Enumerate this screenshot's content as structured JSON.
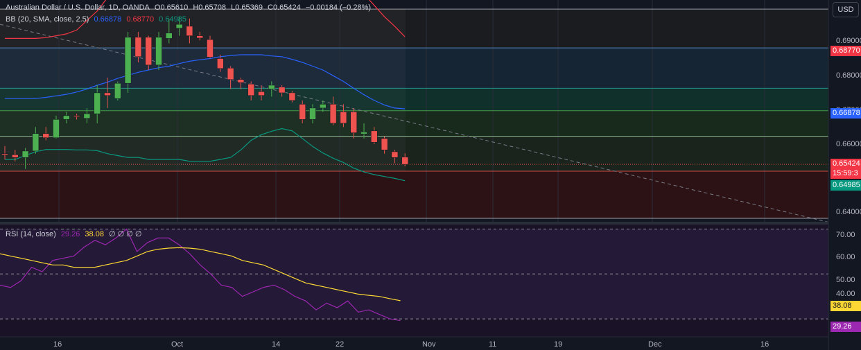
{
  "header": {
    "symbol": "Australian Dollar / U.S. Dollar, 1D, OANDA",
    "open": "O0.65610",
    "high": "H0.65708",
    "low": "L0.65369",
    "close": "C0.65424",
    "change": "−0.00184 (−0.28%)"
  },
  "bb_legend": {
    "label": "BB (20, SMA, close, 2.5)",
    "basis": "0.66878",
    "upper": "0.68770",
    "lower": "0.64985"
  },
  "rsi_legend": {
    "label": "RSI (14, close)",
    "rsi": "29.26",
    "ma": "38.08",
    "extras": "∅ ∅ ∅ ∅"
  },
  "currency_button": "USD",
  "price_axis": {
    "ticks": [
      "0.69000",
      "0.68000",
      "0.67000",
      "0.66000",
      "0.64000"
    ],
    "tags": {
      "upper": "0.68770",
      "basis": "0.66878",
      "last": "0.65424",
      "countdown": "15:59:3",
      "lower": "0.64985"
    }
  },
  "rsi_axis": {
    "ticks": [
      "70.00",
      "60.00",
      "50.00",
      "40.00"
    ],
    "tags": {
      "ma": "38.08",
      "rsi": "29.26"
    }
  },
  "time_axis": [
    "16",
    "Oct",
    "14",
    "22",
    "Nov",
    "11",
    "19",
    "Dec",
    "16"
  ],
  "colors": {
    "bg": "#131722",
    "up": "#26a69a",
    "up_body": "#4caf50",
    "down": "#ef5350",
    "bb_upper": "#f23645",
    "bb_basis": "#2962ff",
    "bb_lower": "#089981",
    "rsi": "#9c27b0",
    "rsi_ma": "#fdd835"
  },
  "chart_data": {
    "type": "candlestick",
    "series_candles": [
      {
        "o": 0.657,
        "h": 0.659,
        "l": 0.6555,
        "c": 0.6567
      },
      {
        "o": 0.6567,
        "h": 0.658,
        "l": 0.655,
        "c": 0.656
      },
      {
        "o": 0.656,
        "h": 0.6585,
        "l": 0.653,
        "c": 0.6577
      },
      {
        "o": 0.6577,
        "h": 0.664,
        "l": 0.657,
        "c": 0.6623
      },
      {
        "o": 0.6623,
        "h": 0.664,
        "l": 0.6605,
        "c": 0.6612
      },
      {
        "o": 0.6612,
        "h": 0.667,
        "l": 0.661,
        "c": 0.666
      },
      {
        "o": 0.666,
        "h": 0.668,
        "l": 0.665,
        "c": 0.667
      },
      {
        "o": 0.667,
        "h": 0.6675,
        "l": 0.666,
        "c": 0.6668
      },
      {
        "o": 0.6663,
        "h": 0.669,
        "l": 0.665,
        "c": 0.6675
      },
      {
        "o": 0.6675,
        "h": 0.675,
        "l": 0.665,
        "c": 0.673
      },
      {
        "o": 0.673,
        "h": 0.677,
        "l": 0.669,
        "c": 0.6723
      },
      {
        "o": 0.6715,
        "h": 0.676,
        "l": 0.671,
        "c": 0.6755
      },
      {
        "o": 0.6755,
        "h": 0.689,
        "l": 0.673,
        "c": 0.6876
      },
      {
        "o": 0.6876,
        "h": 0.689,
        "l": 0.681,
        "c": 0.6825
      },
      {
        "o": 0.6876,
        "h": 0.688,
        "l": 0.679,
        "c": 0.6803
      },
      {
        "o": 0.6803,
        "h": 0.689,
        "l": 0.679,
        "c": 0.6876
      },
      {
        "o": 0.6873,
        "h": 0.6925,
        "l": 0.686,
        "c": 0.6887
      },
      {
        "o": 0.69,
        "h": 0.693,
        "l": 0.688,
        "c": 0.691
      },
      {
        "o": 0.6905,
        "h": 0.6925,
        "l": 0.686,
        "c": 0.688
      },
      {
        "o": 0.688,
        "h": 0.689,
        "l": 0.6868,
        "c": 0.6874
      },
      {
        "o": 0.687,
        "h": 0.688,
        "l": 0.682,
        "c": 0.6824
      },
      {
        "o": 0.682,
        "h": 0.683,
        "l": 0.6785,
        "c": 0.6794
      },
      {
        "o": 0.6795,
        "h": 0.68,
        "l": 0.674,
        "c": 0.6765
      },
      {
        "o": 0.6765,
        "h": 0.677,
        "l": 0.674,
        "c": 0.6757
      },
      {
        "o": 0.6753,
        "h": 0.676,
        "l": 0.671,
        "c": 0.6723
      },
      {
        "o": 0.6733,
        "h": 0.675,
        "l": 0.671,
        "c": 0.6723
      },
      {
        "o": 0.674,
        "h": 0.676,
        "l": 0.672,
        "c": 0.675
      },
      {
        "o": 0.6745,
        "h": 0.675,
        "l": 0.672,
        "c": 0.673
      },
      {
        "o": 0.673,
        "h": 0.6735,
        "l": 0.6705,
        "c": 0.671
      },
      {
        "o": 0.67,
        "h": 0.671,
        "l": 0.665,
        "c": 0.666
      },
      {
        "o": 0.666,
        "h": 0.67,
        "l": 0.665,
        "c": 0.669
      },
      {
        "o": 0.669,
        "h": 0.671,
        "l": 0.668,
        "c": 0.67
      },
      {
        "o": 0.67,
        "h": 0.672,
        "l": 0.6645,
        "c": 0.665
      },
      {
        "o": 0.668,
        "h": 0.67,
        "l": 0.664,
        "c": 0.665
      },
      {
        "o": 0.668,
        "h": 0.669,
        "l": 0.661,
        "c": 0.6625
      },
      {
        "o": 0.6622,
        "h": 0.665,
        "l": 0.661,
        "c": 0.6627
      },
      {
        "o": 0.663,
        "h": 0.664,
        "l": 0.6595,
        "c": 0.66
      },
      {
        "o": 0.661,
        "h": 0.6615,
        "l": 0.657,
        "c": 0.658
      },
      {
        "o": 0.6575,
        "h": 0.658,
        "l": 0.6545,
        "c": 0.656
      },
      {
        "o": 0.6561,
        "h": 0.6571,
        "l": 0.6537,
        "c": 0.6542
      }
    ],
    "bb_upper": [
      0.6873,
      0.6873,
      0.6873,
      0.6873,
      0.6875,
      0.688,
      0.6885,
      0.6895,
      0.692,
      0.6945,
      0.698,
      0.701,
      0.703,
      0.7045,
      0.7055,
      0.7065,
      0.708,
      0.7095,
      0.7105,
      0.711,
      0.7105,
      0.7105,
      0.7095,
      0.7095,
      0.709,
      0.709,
      0.708,
      0.7075,
      0.707,
      0.7065,
      0.706,
      0.7055,
      0.7045,
      0.7035,
      0.7015,
      0.699,
      0.696,
      0.693,
      0.6905,
      0.6877
    ],
    "bb_basis": [
      0.6715,
      0.6715,
      0.6715,
      0.6715,
      0.6718,
      0.6722,
      0.6726,
      0.6732,
      0.674,
      0.675,
      0.6758,
      0.6768,
      0.6776,
      0.6784,
      0.679,
      0.6796,
      0.68,
      0.6807,
      0.6813,
      0.6817,
      0.682,
      0.6825,
      0.6828,
      0.683,
      0.683,
      0.683,
      0.6827,
      0.6825,
      0.6818,
      0.681,
      0.68,
      0.679,
      0.6775,
      0.676,
      0.6742,
      0.6725,
      0.671,
      0.6698,
      0.669,
      0.6688
    ],
    "bb_lower": [
      0.6555,
      0.6555,
      0.6565,
      0.6575,
      0.6581,
      0.6581,
      0.6581,
      0.658,
      0.658,
      0.6578,
      0.657,
      0.6565,
      0.656,
      0.656,
      0.6555,
      0.6555,
      0.6555,
      0.6555,
      0.655,
      0.655,
      0.655,
      0.6555,
      0.656,
      0.658,
      0.6605,
      0.662,
      0.6629,
      0.6636,
      0.663,
      0.661,
      0.6589,
      0.6572,
      0.6558,
      0.6547,
      0.6532,
      0.6522,
      0.6515,
      0.651,
      0.6505,
      0.6499
    ],
    "rsi": [
      45,
      44,
      47,
      53,
      51,
      56,
      57,
      58,
      62,
      65,
      63,
      66,
      70,
      60,
      64,
      66,
      66,
      63,
      59,
      54,
      50,
      45,
      44,
      40,
      42,
      44,
      45,
      43,
      40,
      38,
      34,
      37,
      35,
      38,
      33,
      34,
      32,
      30,
      29.26
    ],
    "rsi_ma": [
      59,
      58,
      57,
      56,
      55,
      54,
      54,
      53,
      53,
      53,
      54,
      55,
      56,
      58,
      60,
      61,
      61.5,
      61.7,
      61.5,
      61,
      60,
      59,
      58,
      56,
      55,
      54,
      52,
      50,
      48,
      46,
      45,
      44,
      43,
      42,
      41,
      40.5,
      40,
      39,
      38.08
    ],
    "trendline": {
      "start_price": 0.691,
      "end_price": 0.639
    },
    "horizontal_levels": [
      0.695,
      0.6848,
      0.6742,
      0.6683,
      0.6616,
      0.6524,
      0.64
    ],
    "price_range": [
      0.6391,
      0.6974
    ],
    "rsi_range": [
      22,
      72
    ],
    "rsi_levels": [
      70,
      50,
      30
    ]
  }
}
